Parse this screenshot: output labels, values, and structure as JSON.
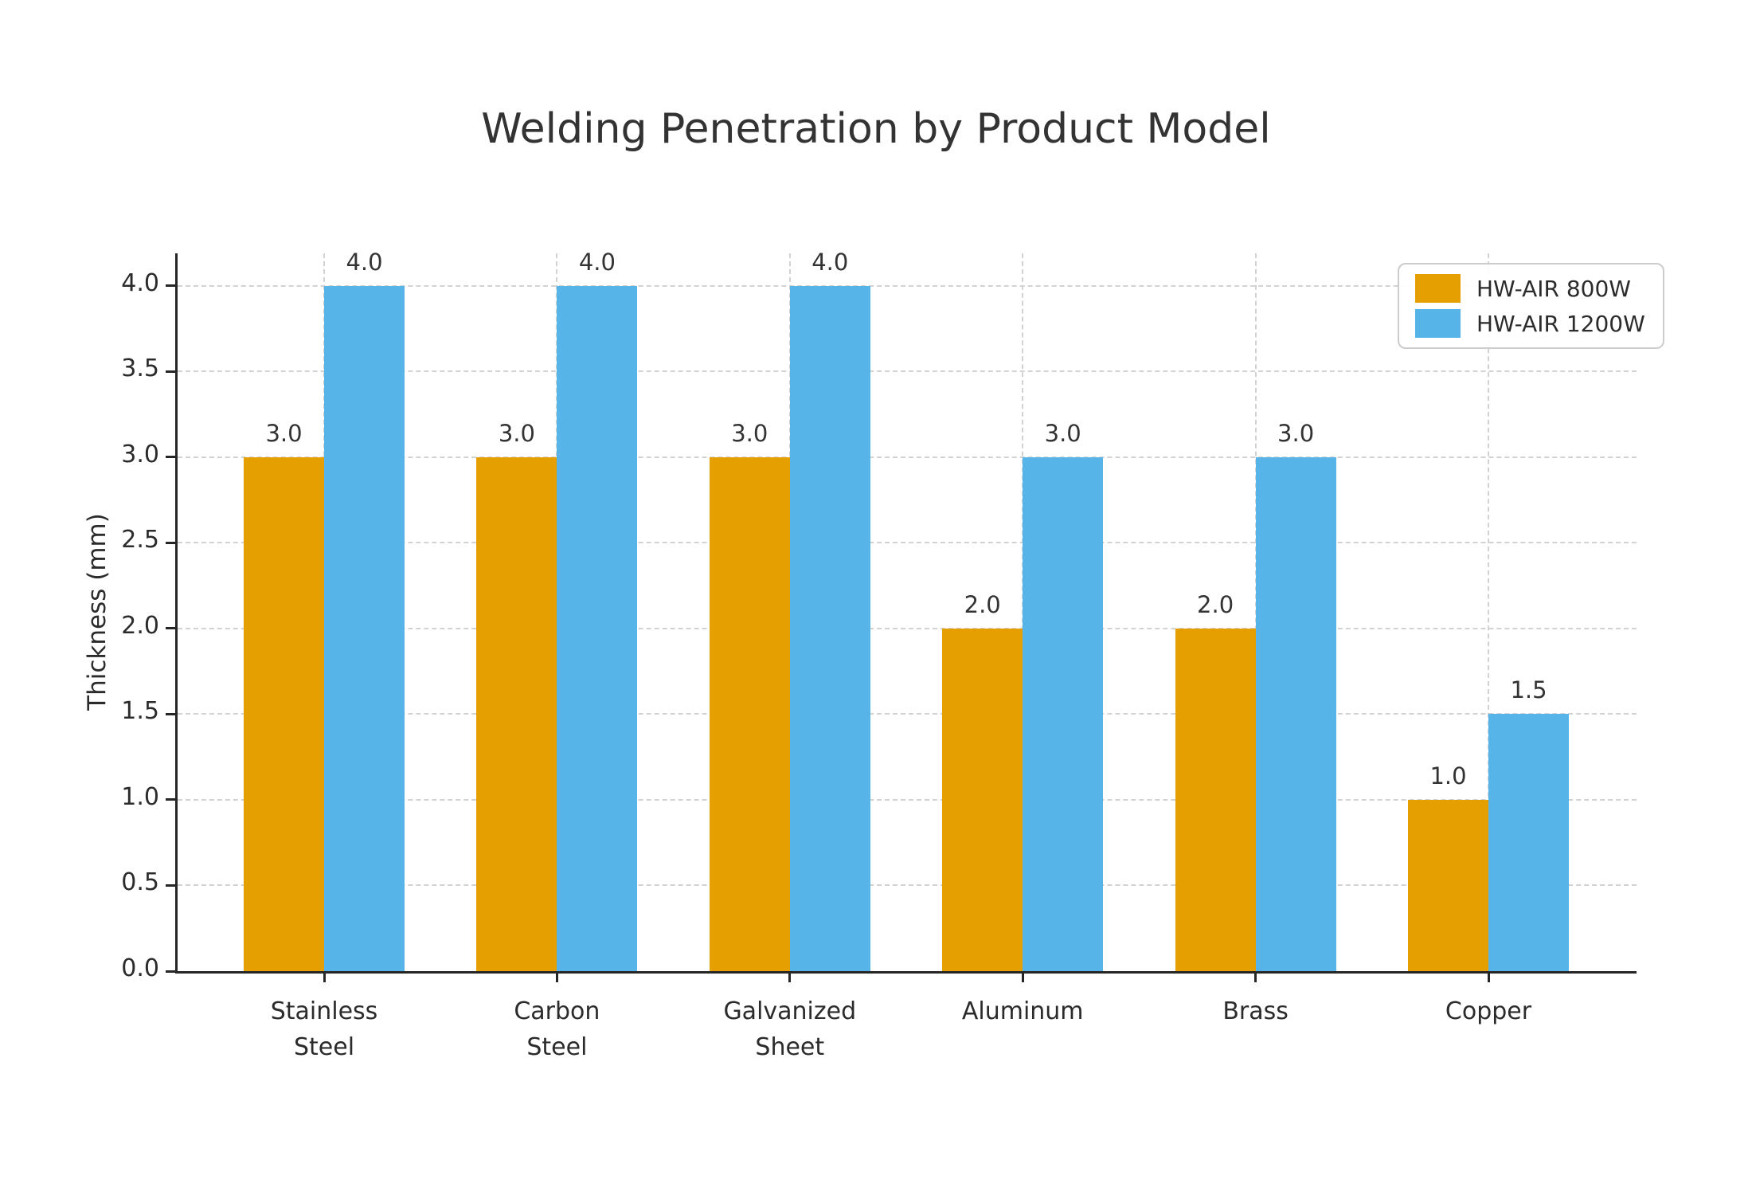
{
  "title": "Welding Penetration by Product Model",
  "chart_data": {
    "type": "bar",
    "title": "Welding Penetration by Product Model",
    "xlabel": "",
    "ylabel": "Thickness (mm)",
    "categories": [
      "Stainless\nSteel",
      "Carbon\nSteel",
      "Galvanized\nSheet",
      "Aluminum",
      "Brass",
      "Copper"
    ],
    "series": [
      {
        "name": "HW-AIR 800W",
        "color": "#E69F00",
        "values": [
          3.0,
          3.0,
          3.0,
          2.0,
          2.0,
          1.0
        ]
      },
      {
        "name": "HW-AIR 1200W",
        "color": "#56B4E9",
        "values": [
          4.0,
          4.0,
          4.0,
          3.0,
          3.0,
          1.5
        ]
      }
    ],
    "value_labels": [
      [
        "3.0",
        "3.0",
        "3.0",
        "2.0",
        "2.0",
        "1.0"
      ],
      [
        "4.0",
        "4.0",
        "4.0",
        "3.0",
        "3.0",
        "1.5"
      ]
    ],
    "yticks": [
      0.0,
      0.5,
      1.0,
      1.5,
      2.0,
      2.5,
      3.0,
      3.5,
      4.0
    ],
    "ytick_labels": [
      "0.0",
      "0.5",
      "1.0",
      "1.5",
      "2.0",
      "2.5",
      "3.0",
      "3.5",
      "4.0"
    ],
    "ylim": [
      0,
      4.19
    ],
    "grid": true,
    "grid_style": "dashed",
    "legend_position": "upper right",
    "colors": {
      "grid": "#d2d2d2",
      "spine": "#262626",
      "text": "#333333",
      "background": "#ffffff"
    }
  }
}
